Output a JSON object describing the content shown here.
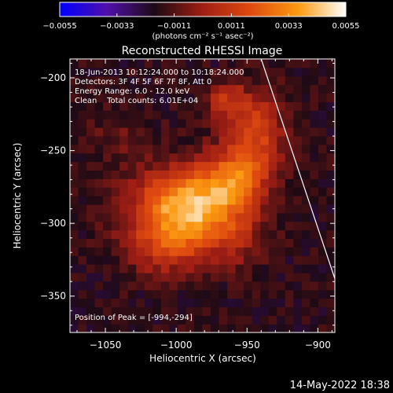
{
  "chart_data": {
    "type": "heatmap",
    "title": "Reconstructed RHESSI Image",
    "xlabel": "Heliocentric X (arcsec)",
    "ylabel": "Heliocentric Y (arcsec)",
    "xlim": [
      -1075,
      -888
    ],
    "ylim": [
      -375,
      -187
    ],
    "xticks": [
      -1050,
      -1000,
      -950,
      -900
    ],
    "xtick_labels": [
      "−1050",
      "−1000",
      "−950",
      "−900"
    ],
    "yticks": [
      -200,
      -250,
      -300,
      -350
    ],
    "ytick_labels": [
      "−200",
      "−250",
      "−300",
      "−350"
    ],
    "colorbar": {
      "min": -0.0055,
      "max": 0.0055,
      "ticks": [
        -0.0055,
        -0.0033,
        -0.0011,
        0.0011,
        0.0033,
        0.0055
      ],
      "tick_labels": [
        "−0.0055",
        "−0.0033",
        "−0.0011",
        "0.0011",
        "0.0033",
        "0.0055"
      ],
      "unit_label": "(photons cm⁻² s⁻¹ asec⁻²)",
      "colors": [
        "#0000ff",
        "#5010a8",
        "#1e0a14",
        "#a01e14",
        "#e04a10",
        "#fb9a10",
        "#ffffff"
      ]
    },
    "annotations": [
      "18-Jun-2013 10:12:24.000 to 10:18:24.000",
      "Detectors: 3F 4F 5F 6F 7F 8F, Att 0",
      "Energy Range: 6.0 - 12.0 keV",
      "Clean    Total counts: 6.01E+04"
    ],
    "peak_label": "Position of Peak = [-994,-294]",
    "peak": {
      "x": -994,
      "y": -294
    },
    "sources": [
      {
        "x": -993,
        "y": -291,
        "sx": 26,
        "sy": 19,
        "amp": 0.0062
      },
      {
        "x": -960,
        "y": -270,
        "sx": 16,
        "sy": 14,
        "amp": 0.0033
      },
      {
        "x": -945,
        "y": -238,
        "sx": 15,
        "sy": 20,
        "amp": 0.0031
      },
      {
        "x": -965,
        "y": -215,
        "sx": 10,
        "sy": 8,
        "amp": 0.002
      },
      {
        "x": -1010,
        "y": -320,
        "sx": 18,
        "sy": 12,
        "amp": 0.0016
      },
      {
        "x": -955,
        "y": -310,
        "sx": 12,
        "sy": 14,
        "amp": 0.0012
      },
      {
        "x": -1040,
        "y": -240,
        "sx": 16,
        "sy": 14,
        "amp": 0.0008
      }
    ],
    "background_level": -0.0017,
    "limb_line": [
      [
        -940,
        -187
      ],
      [
        -888,
        -338
      ]
    ],
    "footer": "14-May-2022 18:38"
  }
}
